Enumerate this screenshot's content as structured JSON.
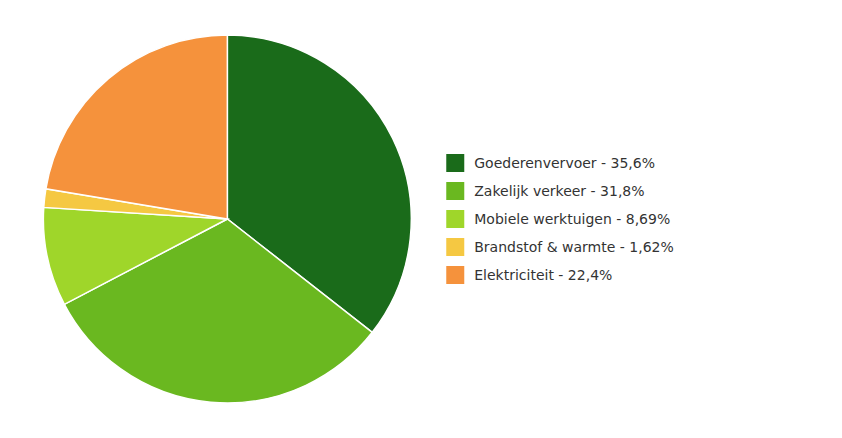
{
  "chart_data": {
    "type": "pie",
    "categories": [
      "Goederenvervoer - 35,6%",
      "Zakelijk verkeer - 31,8%",
      "Mobiele werktuigen - 8,69%",
      "Brandstof & warmte - 1,62%",
      "Elektriciteit - 22,4%"
    ],
    "values": [
      35.6,
      31.8,
      8.69,
      1.62,
      22.4
    ],
    "colors": [
      "#1a6b1a",
      "#6ab820",
      "#9fd62a",
      "#f5c842",
      "#f5923c"
    ],
    "legend": "right"
  }
}
